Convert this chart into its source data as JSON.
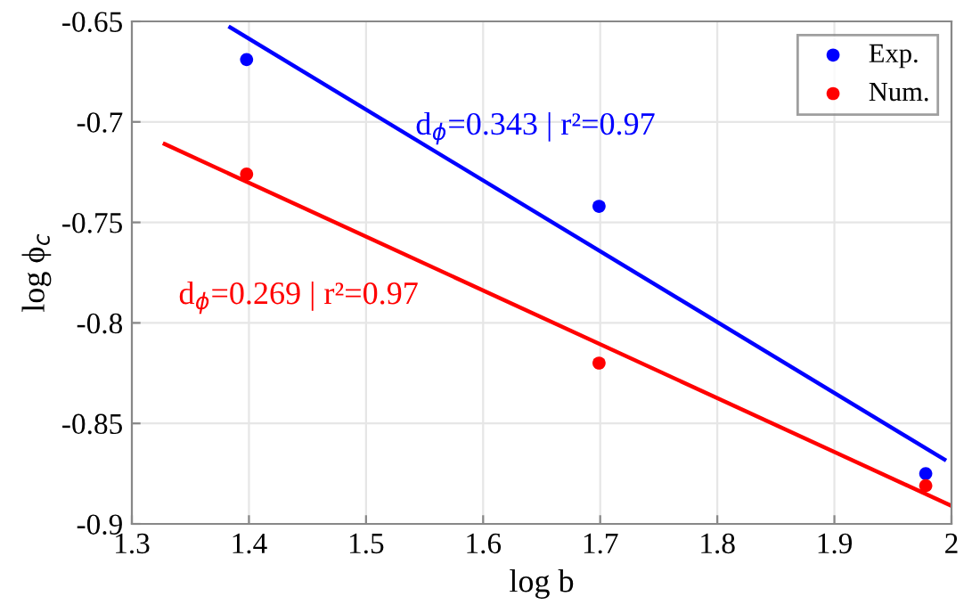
{
  "chart_data": {
    "type": "scatter",
    "xlabel": "log b",
    "ylabel": "log ϕ$_{c}$",
    "xlim": [
      1.3,
      2
    ],
    "xticks": [
      1.3,
      1.4,
      1.5,
      1.6,
      1.7,
      1.8,
      1.9,
      2
    ],
    "ylim": [
      -0.9,
      -0.65
    ],
    "yticks": [
      -0.9,
      -0.85,
      -0.8,
      -0.75,
      -0.7,
      -0.65
    ],
    "grid": true,
    "legend": "top right",
    "series": [
      {
        "name": "Exp.",
        "color": "#0000ff",
        "x": [
          1.398,
          1.699,
          1.978
        ],
        "values": [
          -0.669,
          -0.742,
          -0.875
        ],
        "marker": "circle"
      },
      {
        "name": "Num.",
        "color": "#ff0000",
        "x": [
          1.398,
          1.699,
          1.978
        ],
        "values": [
          -0.726,
          -0.82,
          -0.881
        ],
        "marker": "circle"
      },
      {
        "type": "line",
        "color": "#0000ff",
        "x": [
          1.384,
          1.994
        ],
        "values": [
          -0.653,
          -0.868
        ]
      },
      {
        "type": "line",
        "color": "#ff0000",
        "x": [
          1.328,
          2.0
        ],
        "values": [
          -0.711,
          -0.891
        ]
      }
    ],
    "annotations": [
      "d$_{ϕ}$=0.343 | r²=0.97",
      "d$_{ϕ}$=0.269 | r²=0.97"
    ]
  }
}
